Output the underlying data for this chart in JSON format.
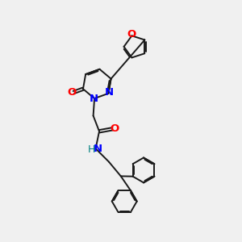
{
  "bg_color": "#f0f0f0",
  "bond_color": "#1a1a1a",
  "N_color": "#0000ff",
  "O_color": "#ff0000",
  "H_color": "#008080",
  "lw": 1.4,
  "dbo": 0.08,
  "fs": 9.5,
  "xlim": [
    0,
    10
  ],
  "ylim": [
    0,
    10
  ]
}
